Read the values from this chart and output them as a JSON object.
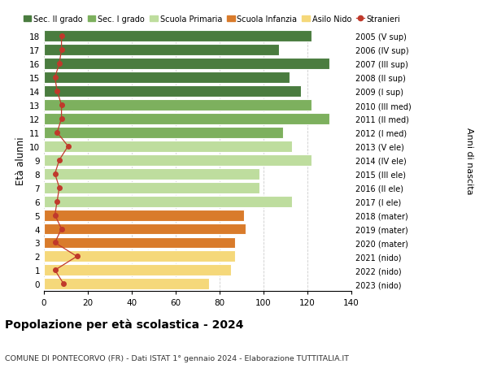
{
  "ages": [
    18,
    17,
    16,
    15,
    14,
    13,
    12,
    11,
    10,
    9,
    8,
    7,
    6,
    5,
    4,
    3,
    2,
    1,
    0
  ],
  "bar_values": [
    122,
    107,
    130,
    112,
    117,
    122,
    130,
    109,
    113,
    122,
    98,
    98,
    113,
    91,
    92,
    87,
    87,
    85,
    75
  ],
  "stranieri_values": [
    8,
    8,
    7,
    5,
    6,
    8,
    8,
    6,
    11,
    7,
    5,
    7,
    6,
    5,
    8,
    5,
    15,
    5,
    9
  ],
  "right_labels": [
    "2005 (V sup)",
    "2006 (IV sup)",
    "2007 (III sup)",
    "2008 (II sup)",
    "2009 (I sup)",
    "2010 (III med)",
    "2011 (II med)",
    "2012 (I med)",
    "2013 (V ele)",
    "2014 (IV ele)",
    "2015 (III ele)",
    "2016 (II ele)",
    "2017 (I ele)",
    "2018 (mater)",
    "2019 (mater)",
    "2020 (mater)",
    "2021 (nido)",
    "2022 (nido)",
    "2023 (nido)"
  ],
  "bar_colors": [
    "#4a7c3f",
    "#4a7c3f",
    "#4a7c3f",
    "#4a7c3f",
    "#4a7c3f",
    "#7db05e",
    "#7db05e",
    "#7db05e",
    "#bedd9e",
    "#bedd9e",
    "#bedd9e",
    "#bedd9e",
    "#bedd9e",
    "#d97b2b",
    "#d97b2b",
    "#d97b2b",
    "#f5d87a",
    "#f5d87a",
    "#f5d87a"
  ],
  "legend_labels": [
    "Sec. II grado",
    "Sec. I grado",
    "Scuola Primaria",
    "Scuola Infanzia",
    "Asilo Nido",
    "Stranieri"
  ],
  "legend_colors": [
    "#4a7c3f",
    "#7db05e",
    "#bedd9e",
    "#d97b2b",
    "#f5d87a",
    "#c0392b"
  ],
  "stranieri_color": "#c0392b",
  "title_main": "Popolazione per età scolastica - 2024",
  "title_sub": "COMUNE DI PONTECORVO (FR) - Dati ISTAT 1° gennaio 2024 - Elaborazione TUTTITALIA.IT",
  "ylabel_left": "Età alunni",
  "ylabel_right": "Anni di nascita",
  "xlim": [
    0,
    140
  ],
  "xticks": [
    0,
    20,
    40,
    60,
    80,
    100,
    120,
    140
  ],
  "background_color": "#ffffff",
  "grid_color": "#cccccc"
}
